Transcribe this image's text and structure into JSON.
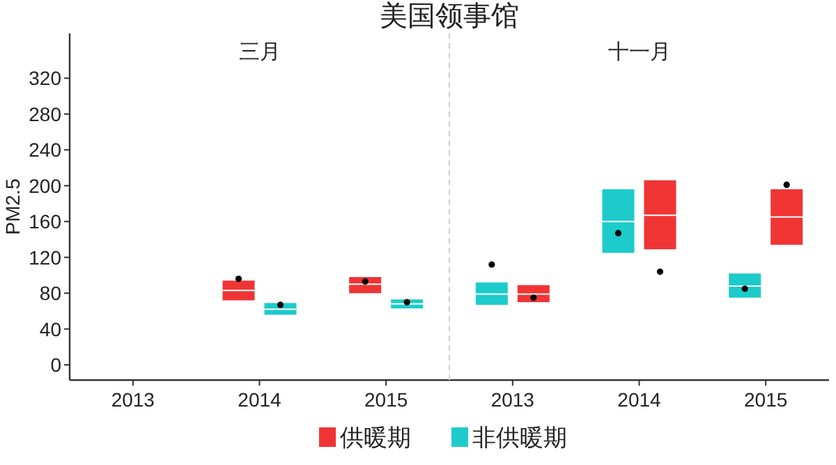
{
  "chart_data": [
    {
      "type": "box",
      "title": "美国领事馆",
      "subtitle": "三月",
      "ylabel": "PM2.5",
      "categories": [
        "2013",
        "2014",
        "2015"
      ],
      "ylim": [
        -17,
        370
      ],
      "yticks": [
        0,
        40,
        80,
        120,
        160,
        200,
        240,
        280,
        320
      ],
      "legend": "bottom",
      "series": [
        {
          "name": "供暖期",
          "color": "#f03434",
          "boxes": [
            null,
            {
              "low": 72,
              "q1": 72,
              "median": 83,
              "q3": 94,
              "high": 94,
              "mean": 96
            },
            {
              "low": 80,
              "q1": 80,
              "median": 90,
              "q3": 98,
              "high": 98,
              "mean": 93
            }
          ]
        },
        {
          "name": "非供暖期",
          "color": "#1ecbcb",
          "boxes": [
            null,
            {
              "low": 56,
              "q1": 56,
              "median": 62,
              "q3": 69,
              "high": 69,
              "mean": 67
            },
            {
              "low": 63,
              "q1": 63,
              "median": 68,
              "q3": 73,
              "high": 73,
              "mean": 70
            }
          ]
        }
      ]
    },
    {
      "type": "box",
      "subtitle": "十一月",
      "categories": [
        "2013",
        "2014",
        "2015"
      ],
      "ylim": [
        -17,
        370
      ],
      "yticks": [
        0,
        40,
        80,
        120,
        160,
        200,
        240,
        280,
        320
      ],
      "tick_labels": "x",
      "legend": "bottom",
      "series": [
        {
          "name": "非供暖期",
          "color": "#1ecbcb",
          "boxes": [
            {
              "low": 67,
              "q1": 67,
              "median": 79,
              "q3": 92,
              "high": 92,
              "mean": 112
            },
            {
              "low": 125,
              "q1": 125,
              "median": 160,
              "q3": 196,
              "high": 196,
              "mean": 147
            },
            {
              "low": 75,
              "q1": 75,
              "median": 88,
              "q3": 102,
              "high": 102,
              "mean": 85
            }
          ]
        },
        {
          "name": "供暖期",
          "color": "#f03434",
          "boxes": [
            {
              "low": 70,
              "q1": 70,
              "median": 79,
              "q3": 89,
              "high": 89,
              "mean": 75
            },
            {
              "low": 129,
              "q1": 129,
              "median": 167,
              "q3": 206,
              "high": 206,
              "mean": 104
            },
            {
              "low": 134,
              "q1": 134,
              "median": 165,
              "q3": 196,
              "high": 196,
              "mean": 201
            }
          ]
        }
      ]
    }
  ]
}
